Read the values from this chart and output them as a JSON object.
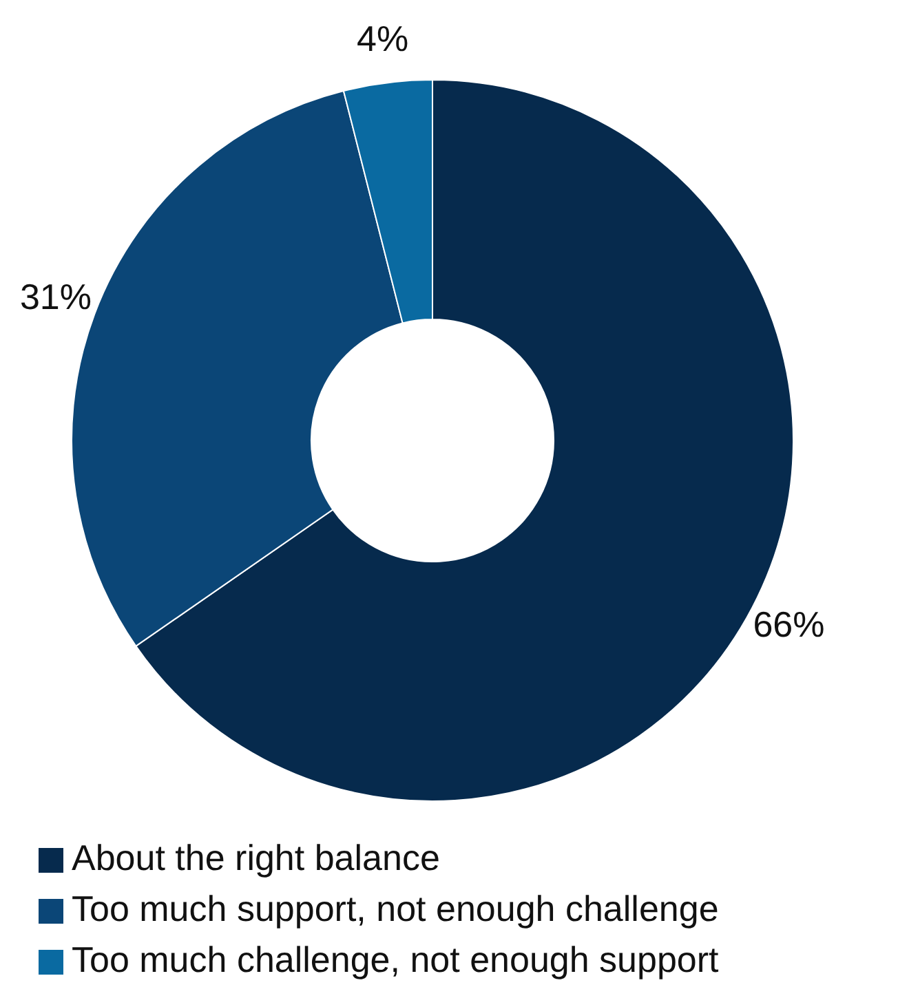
{
  "chart_data": {
    "type": "donut",
    "categories": [
      "About the right balance",
      "Too much support, not enough challenge",
      "Too much challenge, not enough support"
    ],
    "values": [
      66,
      31,
      4
    ],
    "colors": [
      "#062a4d",
      "#0b4677",
      "#0a6aa1"
    ],
    "value_labels": [
      "66%",
      "31%",
      "4%"
    ],
    "legend": "bottom"
  }
}
